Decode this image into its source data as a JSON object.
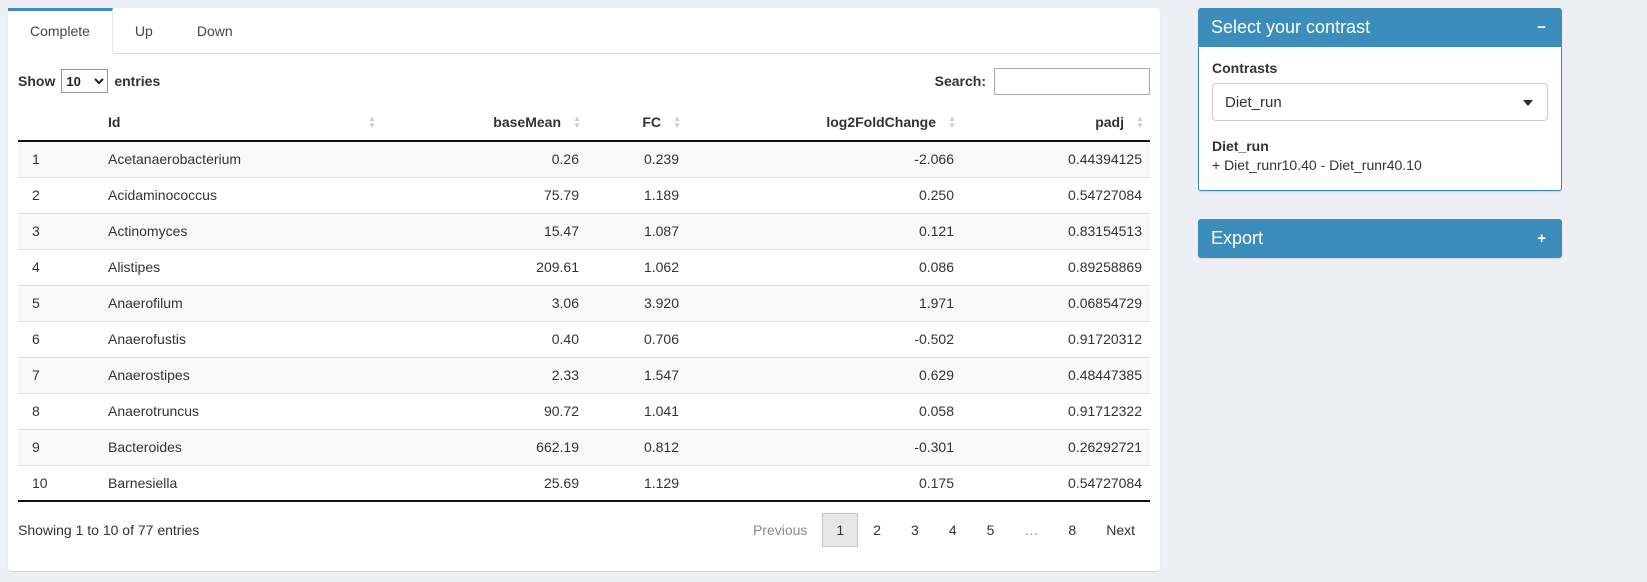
{
  "tabs": [
    {
      "label": "Complete",
      "active": true
    },
    {
      "label": "Up",
      "active": false
    },
    {
      "label": "Down",
      "active": false
    }
  ],
  "toolbar": {
    "show_label": "Show",
    "page_size": "10",
    "entries_label": "entries",
    "search_label": "Search:",
    "search_value": ""
  },
  "table": {
    "columns": [
      {
        "label": "",
        "sortable": false
      },
      {
        "label": "Id",
        "sortable": true
      },
      {
        "label": "baseMean",
        "sortable": true
      },
      {
        "label": "FC",
        "sortable": true
      },
      {
        "label": "log2FoldChange",
        "sortable": true
      },
      {
        "label": "padj",
        "sortable": true
      }
    ],
    "rows": [
      [
        "1",
        "Acetanaerobacterium",
        "0.26",
        "0.239",
        "-2.066",
        "0.44394125"
      ],
      [
        "2",
        "Acidaminococcus",
        "75.79",
        "1.189",
        "0.250",
        "0.54727084"
      ],
      [
        "3",
        "Actinomyces",
        "15.47",
        "1.087",
        "0.121",
        "0.83154513"
      ],
      [
        "4",
        "Alistipes",
        "209.61",
        "1.062",
        "0.086",
        "0.89258869"
      ],
      [
        "5",
        "Anaerofilum",
        "3.06",
        "3.920",
        "1.971",
        "0.06854729"
      ],
      [
        "6",
        "Anaerofustis",
        "0.40",
        "0.706",
        "-0.502",
        "0.91720312"
      ],
      [
        "7",
        "Anaerostipes",
        "2.33",
        "1.547",
        "0.629",
        "0.48447385"
      ],
      [
        "8",
        "Anaerotruncus",
        "90.72",
        "1.041",
        "0.058",
        "0.91712322"
      ],
      [
        "9",
        "Bacteroides",
        "662.19",
        "0.812",
        "-0.301",
        "0.26292721"
      ],
      [
        "10",
        "Barnesiella",
        "25.69",
        "1.129",
        "0.175",
        "0.54727084"
      ]
    ]
  },
  "footer": {
    "info": "Showing 1 to 10 of 77 entries",
    "pagination": [
      "Previous",
      "1",
      "2",
      "3",
      "4",
      "5",
      "…",
      "8",
      "Next"
    ],
    "active_page": "1"
  },
  "contrast_box": {
    "title": "Select your contrast",
    "collapse_icon": "−",
    "contrasts_label": "Contrasts",
    "selected_contrast": "Diet_run",
    "contrast_name": "Diet_run",
    "contrast_formula": "+ Diet_runr10.40 - Diet_runr40.10"
  },
  "export_box": {
    "title": "Export",
    "expand_icon": "+"
  },
  "colors": {
    "primary": "#3c8dbc",
    "page_bg": "#ecf0f5"
  }
}
